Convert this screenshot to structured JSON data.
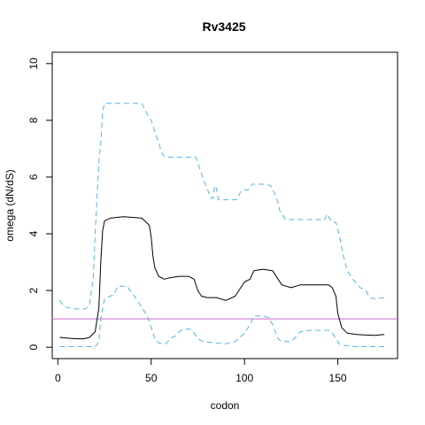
{
  "chart_data": {
    "type": "line",
    "title": "Rv3425",
    "xlabel": "codon",
    "ylabel": "omega (dN/dS)",
    "xlim": [
      -3,
      182
    ],
    "ylim": [
      -0.4,
      10.4
    ],
    "xticks": [
      0,
      50,
      100,
      150
    ],
    "yticks": [
      0,
      2,
      4,
      6,
      8,
      10
    ],
    "grid": false,
    "reference_line": {
      "y": 1,
      "color": "#cc66cc"
    },
    "series": [
      {
        "role": "estimate",
        "color": "#000000",
        "dash": "solid",
        "points": [
          [
            1,
            0.35
          ],
          [
            5,
            0.32
          ],
          [
            10,
            0.3
          ],
          [
            14,
            0.3
          ],
          [
            17,
            0.35
          ],
          [
            20,
            0.55
          ],
          [
            22,
            1.4
          ],
          [
            23,
            3.0
          ],
          [
            24,
            4.1
          ],
          [
            25,
            4.45
          ],
          [
            28,
            4.55
          ],
          [
            35,
            4.6
          ],
          [
            40,
            4.58
          ],
          [
            45,
            4.55
          ],
          [
            49,
            4.3
          ],
          [
            50,
            3.9
          ],
          [
            51,
            3.2
          ],
          [
            52,
            2.8
          ],
          [
            54,
            2.5
          ],
          [
            57,
            2.4
          ],
          [
            60,
            2.45
          ],
          [
            65,
            2.5
          ],
          [
            70,
            2.5
          ],
          [
            73,
            2.4
          ],
          [
            75,
            2.0
          ],
          [
            77,
            1.8
          ],
          [
            80,
            1.75
          ],
          [
            85,
            1.75
          ],
          [
            90,
            1.65
          ],
          [
            95,
            1.8
          ],
          [
            100,
            2.3
          ],
          [
            103,
            2.4
          ],
          [
            105,
            2.7
          ],
          [
            110,
            2.75
          ],
          [
            115,
            2.7
          ],
          [
            118,
            2.4
          ],
          [
            120,
            2.2
          ],
          [
            125,
            2.1
          ],
          [
            130,
            2.2
          ],
          [
            135,
            2.2
          ],
          [
            140,
            2.2
          ],
          [
            145,
            2.2
          ],
          [
            147,
            2.1
          ],
          [
            149,
            1.8
          ],
          [
            150,
            1.2
          ],
          [
            152,
            0.7
          ],
          [
            155,
            0.5
          ],
          [
            160,
            0.45
          ],
          [
            165,
            0.43
          ],
          [
            170,
            0.42
          ],
          [
            175,
            0.45
          ]
        ]
      },
      {
        "role": "upper-bound",
        "color": "#56b4e9",
        "dash": "dashed",
        "points": [
          [
            1,
            1.65
          ],
          [
            3,
            1.45
          ],
          [
            5,
            1.4
          ],
          [
            10,
            1.35
          ],
          [
            15,
            1.35
          ],
          [
            17,
            1.5
          ],
          [
            19,
            2.5
          ],
          [
            20,
            4.0
          ],
          [
            21,
            5.3
          ],
          [
            22,
            6.5
          ],
          [
            23,
            7.2
          ],
          [
            24,
            8.3
          ],
          [
            25,
            8.6
          ],
          [
            30,
            8.6
          ],
          [
            40,
            8.6
          ],
          [
            45,
            8.6
          ],
          [
            48,
            8.2
          ],
          [
            50,
            8.0
          ],
          [
            52,
            7.6
          ],
          [
            54,
            7.2
          ],
          [
            56,
            6.8
          ],
          [
            58,
            6.7
          ],
          [
            65,
            6.7
          ],
          [
            74,
            6.7
          ],
          [
            76,
            6.3
          ],
          [
            78,
            5.9
          ],
          [
            80,
            5.6
          ],
          [
            82,
            5.25
          ],
          [
            83,
            5.25
          ],
          [
            84,
            5.7
          ],
          [
            85,
            5.6
          ],
          [
            86,
            5.2
          ],
          [
            90,
            5.2
          ],
          [
            96,
            5.2
          ],
          [
            98,
            5.5
          ],
          [
            100,
            5.55
          ],
          [
            102,
            5.55
          ],
          [
            104,
            5.75
          ],
          [
            110,
            5.75
          ],
          [
            114,
            5.7
          ],
          [
            117,
            5.3
          ],
          [
            119,
            4.8
          ],
          [
            122,
            4.5
          ],
          [
            130,
            4.5
          ],
          [
            140,
            4.5
          ],
          [
            143,
            4.5
          ],
          [
            144,
            4.7
          ],
          [
            145,
            4.6
          ],
          [
            147,
            4.4
          ],
          [
            149,
            4.4
          ],
          [
            151,
            3.9
          ],
          [
            153,
            3.2
          ],
          [
            155,
            2.7
          ],
          [
            158,
            2.4
          ],
          [
            162,
            2.1
          ],
          [
            165,
            2.0
          ],
          [
            167,
            1.75
          ],
          [
            170,
            1.7
          ],
          [
            175,
            1.75
          ]
        ]
      },
      {
        "role": "lower-bound",
        "color": "#56b4e9",
        "dash": "dashed",
        "points": [
          [
            1,
            0.02
          ],
          [
            5,
            0.02
          ],
          [
            10,
            0.02
          ],
          [
            15,
            0.02
          ],
          [
            20,
            0.02
          ],
          [
            22,
            0.2
          ],
          [
            23,
            1.0
          ],
          [
            25,
            1.7
          ],
          [
            28,
            1.8
          ],
          [
            30,
            1.85
          ],
          [
            32,
            2.15
          ],
          [
            37,
            2.15
          ],
          [
            40,
            1.9
          ],
          [
            43,
            1.6
          ],
          [
            46,
            1.3
          ],
          [
            48,
            1.1
          ],
          [
            50,
            0.7
          ],
          [
            52,
            0.3
          ],
          [
            54,
            0.15
          ],
          [
            58,
            0.12
          ],
          [
            60,
            0.3
          ],
          [
            63,
            0.4
          ],
          [
            66,
            0.6
          ],
          [
            70,
            0.65
          ],
          [
            72,
            0.6
          ],
          [
            75,
            0.3
          ],
          [
            78,
            0.2
          ],
          [
            85,
            0.15
          ],
          [
            90,
            0.12
          ],
          [
            95,
            0.2
          ],
          [
            100,
            0.5
          ],
          [
            103,
            0.8
          ],
          [
            105,
            1.1
          ],
          [
            110,
            1.1
          ],
          [
            113,
            1.05
          ],
          [
            115,
            0.8
          ],
          [
            118,
            0.3
          ],
          [
            120,
            0.2
          ],
          [
            125,
            0.2
          ],
          [
            128,
            0.4
          ],
          [
            130,
            0.55
          ],
          [
            135,
            0.6
          ],
          [
            140,
            0.6
          ],
          [
            145,
            0.6
          ],
          [
            147,
            0.5
          ],
          [
            149,
            0.3
          ],
          [
            151,
            0.1
          ],
          [
            155,
            0.05
          ],
          [
            160,
            0.02
          ],
          [
            170,
            0.02
          ],
          [
            175,
            0.02
          ]
        ]
      }
    ]
  }
}
